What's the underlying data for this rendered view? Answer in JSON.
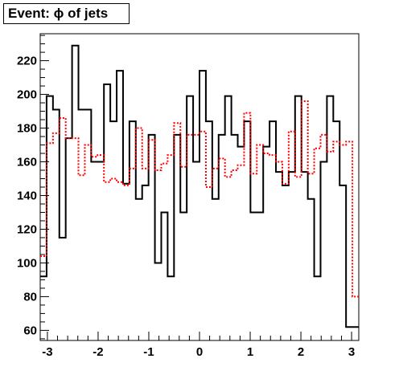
{
  "chart_data": {
    "type": "histogram",
    "title": "Event: ϕ of jets",
    "xlabel": "",
    "ylabel": "",
    "xlim": [
      -3.1416,
      3.1416
    ],
    "ylim": [
      54,
      236
    ],
    "xticks": [
      -3,
      -2,
      -1,
      0,
      1,
      2,
      3
    ],
    "yticks": [
      60,
      80,
      100,
      120,
      140,
      160,
      180,
      200,
      220
    ],
    "grid": false,
    "legend": "none",
    "bins": 50,
    "series": [
      {
        "color": "#000000",
        "style": "solid",
        "values": [
          92,
          199,
          191,
          115,
          174,
          229,
          191,
          191,
          160,
          160,
          206,
          184,
          214,
          147,
          184,
          138,
          146,
          176,
          100,
          130,
          92,
          176,
          130,
          199,
          160,
          214,
          184,
          138,
          176,
          199,
          176,
          169,
          184,
          130,
          130,
          169,
          184,
          154,
          146,
          154,
          199,
          154,
          138,
          92,
          160,
          199,
          184,
          146,
          62,
          62
        ]
      },
      {
        "color": "#ff0000",
        "style": "dotted",
        "values": [
          104,
          171,
          177,
          186,
          174,
          174,
          152,
          170,
          163,
          164,
          148,
          150,
          148,
          146,
          156,
          180,
          156,
          173,
          155,
          159,
          164,
          183,
          157,
          176,
          176,
          178,
          145,
          156,
          162,
          151,
          155,
          158,
          189,
          153,
          170,
          165,
          164,
          160,
          147,
          178,
          151,
          196,
          153,
          168,
          176,
          166,
          172,
          170,
          172,
          80
        ]
      }
    ]
  }
}
